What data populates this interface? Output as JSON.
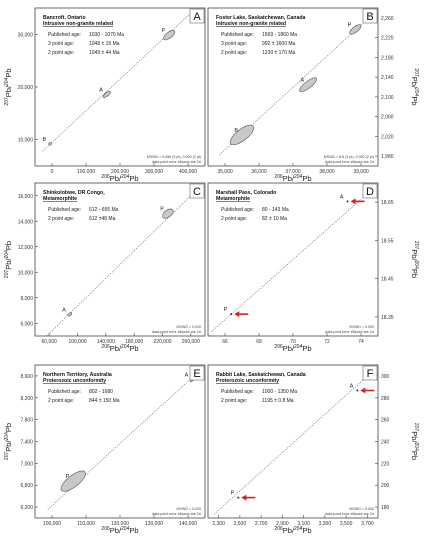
{
  "axis_labels": {
    "x_left": "206Pb/204Pb",
    "x_right": "206Pb/204Pb",
    "y_left": "207Pb/204Pb",
    "y_right": "207Pb/204Pb"
  },
  "colors": {
    "ellipse_fill": "#c8c8c8",
    "ellipse_stroke": "#555555",
    "arrow": "#d92020",
    "frame": "#444444"
  },
  "chart_data": [
    {
      "panel_letter": "A",
      "type": "scatter",
      "title": "Bancroft, Ontario",
      "subtitle": "Intrusive non-granite related",
      "lines": [
        {
          "label": "Published age:",
          "value": "1030 - 1070 Ma"
        },
        {
          "label": "3 point age:",
          "value": "1048 ± 19 Ma"
        },
        {
          "label": "2 point age:",
          "value": "1049 ± 44 Ma"
        }
      ],
      "mswd": [
        "MSWD = 0.056 (3 pt), 0.000 (2 pt)",
        "data-point error ellipses are 2σ"
      ],
      "xticks": [
        "0",
        "100,000",
        "200,000",
        "300,000",
        "400,000"
      ],
      "yticks": [
        "10,000",
        "20,000",
        "30,000"
      ],
      "xlim": [
        0,
        450000
      ],
      "ylim": [
        0,
        32000
      ],
      "points": [
        {
          "label": "B",
          "x": 40000,
          "y": 4500,
          "ex": 3000,
          "ey": 300
        },
        {
          "label": "A",
          "x": 190000,
          "y": 14500,
          "ex": 12000,
          "ey": 700
        },
        {
          "label": "P",
          "x": 355000,
          "y": 26500,
          "ex": 18000,
          "ey": 1200
        }
      ],
      "line": [
        [
          20000,
          3000
        ],
        [
          420000,
          31500
        ]
      ]
    },
    {
      "panel_letter": "B",
      "type": "scatter",
      "title": "Foster Lake, Saskatchewan, Canada",
      "subtitle": "Intrusive non-granite related",
      "lines": [
        {
          "label": "Published age:",
          "value": "1569 - 1860 Ma"
        },
        {
          "label": "3 point age:",
          "value": "992 ± 1600 Ma"
        },
        {
          "label": "2 point age:",
          "value": "1239 ± 170 Ma"
        }
      ],
      "mswd": [
        "MSWD = 8.8 (3 pt), 0.000 (2 pt)",
        "data-point error ellipses are 2σ"
      ],
      "xticks": [
        "35,000",
        "36,000",
        "37,000",
        "38,000",
        "39,000"
      ],
      "yticks": [
        "1,980",
        "2,020",
        "2,060",
        "2,100",
        "2,140",
        "2,180",
        "2,220",
        "2,260"
      ],
      "xlim": [
        35000,
        39500
      ],
      "ylim": [
        1980,
        2260
      ],
      "points": [
        {
          "label": "B",
          "x": 35900,
          "y": 2035,
          "ex": 380,
          "ey": 20
        },
        {
          "label": "A",
          "x": 37650,
          "y": 2124,
          "ex": 280,
          "ey": 12
        },
        {
          "label": "P",
          "x": 38900,
          "y": 2222,
          "ex": 180,
          "ey": 10
        }
      ],
      "line": [
        [
          35300,
          2000
        ],
        [
          39300,
          2245
        ]
      ]
    },
    {
      "panel_letter": "C",
      "type": "scatter",
      "title": "Shinkolobwe, DR Congo,",
      "subtitle": "Metamorphite",
      "lines": [
        {
          "label": "Published age:",
          "value": "612 - 655 Ma"
        },
        {
          "label": "2 point age:",
          "value": "612 ±48 Ma"
        }
      ],
      "mswd": [
        "MSWD = 0.000",
        "data-point error ellipses are 2σ"
      ],
      "xticks": [
        "60,000",
        "100,000",
        "140,000",
        "180,000",
        "220,000",
        "260,000"
      ],
      "yticks": [
        "6,000",
        "8,000",
        "10,000",
        "12,000",
        "14,000",
        "16,000"
      ],
      "xlim": [
        60000,
        280000
      ],
      "ylim": [
        5000,
        17000
      ],
      "points": [
        {
          "label": "A",
          "x": 105000,
          "y": 6700,
          "ex": 3000,
          "ey": 200
        },
        {
          "label": "P",
          "x": 232000,
          "y": 14600,
          "ex": 8000,
          "ey": 550
        }
      ],
      "line": [
        [
          75000,
          5000
        ],
        [
          270000,
          16500
        ]
      ]
    },
    {
      "panel_letter": "D",
      "type": "scatter",
      "title": "Marshall Pass, Colorado",
      "subtitle": "Metamorphite",
      "lines": [
        {
          "label": "Published age:",
          "value": "80 - 143 Ma"
        },
        {
          "label": "2 point age:",
          "value": "82 ± 10 Ma"
        }
      ],
      "mswd": [
        "MSWD = 0.000",
        "data-point error ellipses are 2σ"
      ],
      "xticks": [
        "66",
        "68",
        "70",
        "72",
        "74"
      ],
      "yticks": [
        "18.35",
        "18.45",
        "18.55",
        "18.65"
      ],
      "xlim": [
        66,
        75.5
      ],
      "ylim": [
        18.32,
        18.67
      ],
      "points": [
        {
          "label": "P",
          "x": 67.3,
          "y": 18.37,
          "arrow": true
        },
        {
          "label": "A",
          "x": 73.8,
          "y": 18.628,
          "arrow": true
        }
      ],
      "line": [
        [
          66.2,
          18.33
        ],
        [
          75.3,
          18.66
        ]
      ]
    },
    {
      "panel_letter": "E",
      "type": "scatter",
      "title": "Northern Territory, Australia",
      "subtitle": "Proterozoic unconformity",
      "lines": [
        {
          "label": "Published age:",
          "value": "802 - 1680"
        },
        {
          "label": "2 point age:",
          "value": "844 ± 150 Ma"
        }
      ],
      "mswd": [
        "MSWD = 0.000",
        "data-point error ellipses are 2σ"
      ],
      "xticks": [
        "100,000",
        "110,000",
        "120,000",
        "130,000",
        "140,000"
      ],
      "yticks": [
        "6,200",
        "6,600",
        "7,000",
        "7,400",
        "7,800",
        "8,200",
        "8,600"
      ],
      "xlim": [
        100000,
        140000
      ],
      "ylim": [
        6200,
        8900
      ],
      "points": [
        {
          "label": "P",
          "x": 109000,
          "y": 6850,
          "ex": 3500,
          "ey": 200
        },
        {
          "label": "A",
          "x": 137000,
          "y": 8640,
          "ex": 600,
          "ey": 30
        }
      ],
      "line": [
        [
          103000,
          6350
        ],
        [
          139500,
          8850
        ]
      ]
    },
    {
      "panel_letter": "F",
      "type": "scatter",
      "title": "Rabbit Lake, Saskatchewan, Canada",
      "subtitle": "Proterozoic unconformity",
      "lines": [
        {
          "label": "Published age:",
          "value": "1000 - 1350 Ma"
        },
        {
          "label": "2 point age:",
          "value": "1195 ± 0.8 Ma"
        }
      ],
      "mswd": [
        "MSWD = 0.000",
        "data-point error ellipses are 2σ"
      ],
      "xticks": [
        "2,300",
        "2,500",
        "2,700",
        "2,900",
        "3,100",
        "3,300",
        "3,500",
        "3,700"
      ],
      "yticks": [
        "180",
        "200",
        "220",
        "240",
        "260",
        "280",
        "300"
      ],
      "xlim": [
        2300,
        3700
      ],
      "ylim": [
        180,
        300
      ],
      "points": [
        {
          "label": "P",
          "x": 2550,
          "y": 196,
          "arrow": true
        },
        {
          "label": "A",
          "x": 3530,
          "y": 280,
          "arrow": true
        }
      ],
      "line": [
        [
          2350,
          183
        ],
        [
          3690,
          298
        ]
      ]
    }
  ]
}
